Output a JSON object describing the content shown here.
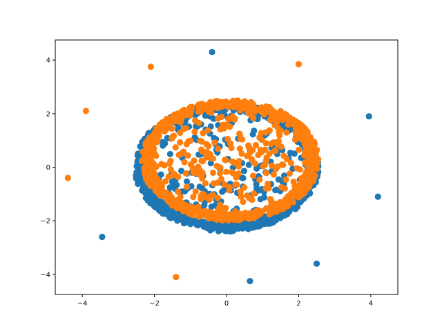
{
  "chart_data": {
    "type": "scatter",
    "title": "",
    "xlabel": "",
    "ylabel": "",
    "xlim": [
      -4.75,
      4.75
    ],
    "ylim": [
      -4.75,
      4.75
    ],
    "x_ticks": [
      -4,
      -2,
      0,
      2,
      4
    ],
    "y_ticks": [
      -4,
      -2,
      0,
      2,
      4
    ],
    "x_tick_labels": [
      "−4",
      "−2",
      "0",
      "2",
      "4"
    ],
    "y_tick_labels": [
      "−4",
      "−2",
      "0",
      "2",
      "4"
    ],
    "grid": false,
    "series": [
      {
        "color": "#1f77b4",
        "ellipse_cloud": {
          "center": [
            0.0,
            0.0
          ],
          "rx": 2.55,
          "ry": 2.4,
          "count": 950,
          "seed": 7
        },
        "points": [
          [
            -0.4,
            4.3
          ],
          [
            3.95,
            1.9
          ],
          [
            4.2,
            -1.1
          ],
          [
            2.5,
            -3.6
          ],
          [
            0.65,
            -4.25
          ],
          [
            -3.45,
            -2.6
          ]
        ]
      },
      {
        "color": "#ff7f0e",
        "ellipse_cloud": {
          "center": [
            0.1,
            0.25
          ],
          "rx": 2.45,
          "ry": 2.25,
          "count": 950,
          "seed": 23
        },
        "points": [
          [
            -2.1,
            3.75
          ],
          [
            2.0,
            3.85
          ],
          [
            -3.9,
            2.1
          ],
          [
            -4.4,
            -0.4
          ],
          [
            -1.4,
            -4.1
          ]
        ]
      }
    ]
  }
}
